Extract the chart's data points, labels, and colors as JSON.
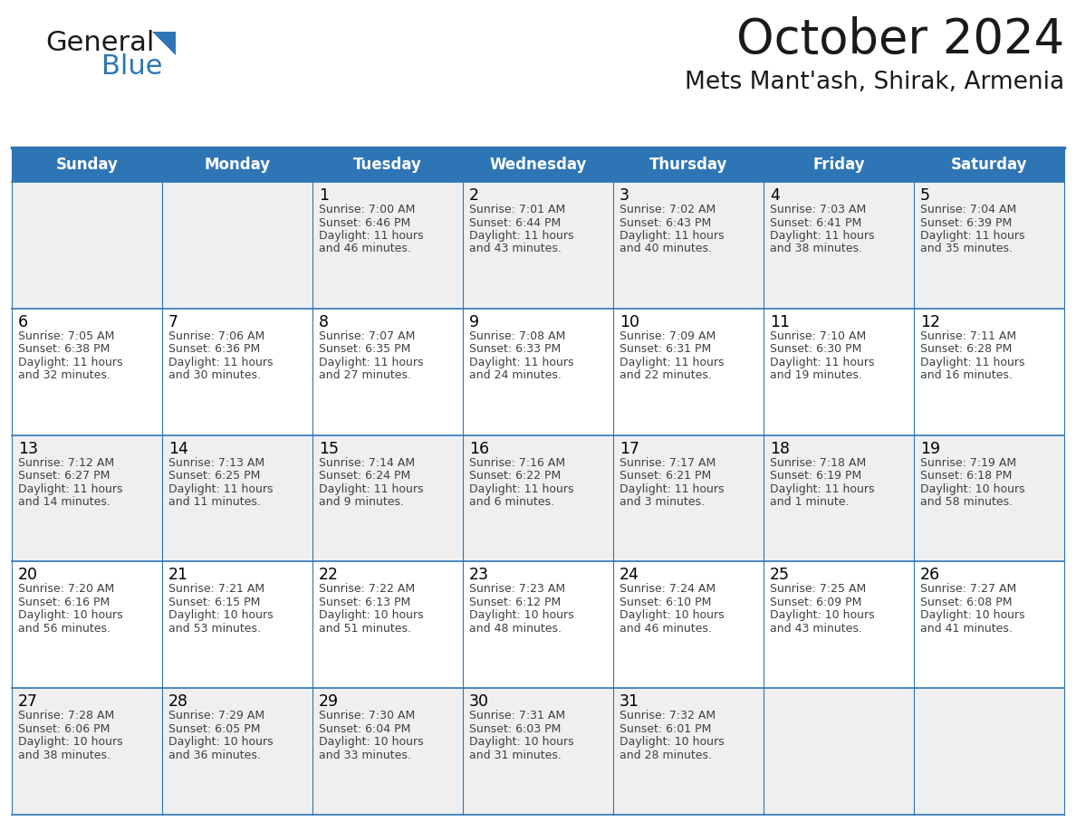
{
  "title": "October 2024",
  "subtitle": "Mets Mant'ash, Shirak, Armenia",
  "header_bg": "#2E75B6",
  "header_text_color": "#FFFFFF",
  "cell_bg_light": "#EFEFEF",
  "cell_bg_white": "#FFFFFF",
  "day_number_color": "#000000",
  "cell_text_color": "#404040",
  "border_color": "#2E75B6",
  "thin_line_color": "#2E75B6",
  "days_of_week": [
    "Sunday",
    "Monday",
    "Tuesday",
    "Wednesday",
    "Thursday",
    "Friday",
    "Saturday"
  ],
  "weeks": [
    [
      {
        "day": "",
        "info": ""
      },
      {
        "day": "",
        "info": ""
      },
      {
        "day": "1",
        "info": "Sunrise: 7:00 AM\nSunset: 6:46 PM\nDaylight: 11 hours\nand 46 minutes."
      },
      {
        "day": "2",
        "info": "Sunrise: 7:01 AM\nSunset: 6:44 PM\nDaylight: 11 hours\nand 43 minutes."
      },
      {
        "day": "3",
        "info": "Sunrise: 7:02 AM\nSunset: 6:43 PM\nDaylight: 11 hours\nand 40 minutes."
      },
      {
        "day": "4",
        "info": "Sunrise: 7:03 AM\nSunset: 6:41 PM\nDaylight: 11 hours\nand 38 minutes."
      },
      {
        "day": "5",
        "info": "Sunrise: 7:04 AM\nSunset: 6:39 PM\nDaylight: 11 hours\nand 35 minutes."
      }
    ],
    [
      {
        "day": "6",
        "info": "Sunrise: 7:05 AM\nSunset: 6:38 PM\nDaylight: 11 hours\nand 32 minutes."
      },
      {
        "day": "7",
        "info": "Sunrise: 7:06 AM\nSunset: 6:36 PM\nDaylight: 11 hours\nand 30 minutes."
      },
      {
        "day": "8",
        "info": "Sunrise: 7:07 AM\nSunset: 6:35 PM\nDaylight: 11 hours\nand 27 minutes."
      },
      {
        "day": "9",
        "info": "Sunrise: 7:08 AM\nSunset: 6:33 PM\nDaylight: 11 hours\nand 24 minutes."
      },
      {
        "day": "10",
        "info": "Sunrise: 7:09 AM\nSunset: 6:31 PM\nDaylight: 11 hours\nand 22 minutes."
      },
      {
        "day": "11",
        "info": "Sunrise: 7:10 AM\nSunset: 6:30 PM\nDaylight: 11 hours\nand 19 minutes."
      },
      {
        "day": "12",
        "info": "Sunrise: 7:11 AM\nSunset: 6:28 PM\nDaylight: 11 hours\nand 16 minutes."
      }
    ],
    [
      {
        "day": "13",
        "info": "Sunrise: 7:12 AM\nSunset: 6:27 PM\nDaylight: 11 hours\nand 14 minutes."
      },
      {
        "day": "14",
        "info": "Sunrise: 7:13 AM\nSunset: 6:25 PM\nDaylight: 11 hours\nand 11 minutes."
      },
      {
        "day": "15",
        "info": "Sunrise: 7:14 AM\nSunset: 6:24 PM\nDaylight: 11 hours\nand 9 minutes."
      },
      {
        "day": "16",
        "info": "Sunrise: 7:16 AM\nSunset: 6:22 PM\nDaylight: 11 hours\nand 6 minutes."
      },
      {
        "day": "17",
        "info": "Sunrise: 7:17 AM\nSunset: 6:21 PM\nDaylight: 11 hours\nand 3 minutes."
      },
      {
        "day": "18",
        "info": "Sunrise: 7:18 AM\nSunset: 6:19 PM\nDaylight: 11 hours\nand 1 minute."
      },
      {
        "day": "19",
        "info": "Sunrise: 7:19 AM\nSunset: 6:18 PM\nDaylight: 10 hours\nand 58 minutes."
      }
    ],
    [
      {
        "day": "20",
        "info": "Sunrise: 7:20 AM\nSunset: 6:16 PM\nDaylight: 10 hours\nand 56 minutes."
      },
      {
        "day": "21",
        "info": "Sunrise: 7:21 AM\nSunset: 6:15 PM\nDaylight: 10 hours\nand 53 minutes."
      },
      {
        "day": "22",
        "info": "Sunrise: 7:22 AM\nSunset: 6:13 PM\nDaylight: 10 hours\nand 51 minutes."
      },
      {
        "day": "23",
        "info": "Sunrise: 7:23 AM\nSunset: 6:12 PM\nDaylight: 10 hours\nand 48 minutes."
      },
      {
        "day": "24",
        "info": "Sunrise: 7:24 AM\nSunset: 6:10 PM\nDaylight: 10 hours\nand 46 minutes."
      },
      {
        "day": "25",
        "info": "Sunrise: 7:25 AM\nSunset: 6:09 PM\nDaylight: 10 hours\nand 43 minutes."
      },
      {
        "day": "26",
        "info": "Sunrise: 7:27 AM\nSunset: 6:08 PM\nDaylight: 10 hours\nand 41 minutes."
      }
    ],
    [
      {
        "day": "27",
        "info": "Sunrise: 7:28 AM\nSunset: 6:06 PM\nDaylight: 10 hours\nand 38 minutes."
      },
      {
        "day": "28",
        "info": "Sunrise: 7:29 AM\nSunset: 6:05 PM\nDaylight: 10 hours\nand 36 minutes."
      },
      {
        "day": "29",
        "info": "Sunrise: 7:30 AM\nSunset: 6:04 PM\nDaylight: 10 hours\nand 33 minutes."
      },
      {
        "day": "30",
        "info": "Sunrise: 7:31 AM\nSunset: 6:03 PM\nDaylight: 10 hours\nand 31 minutes."
      },
      {
        "day": "31",
        "info": "Sunrise: 7:32 AM\nSunset: 6:01 PM\nDaylight: 10 hours\nand 28 minutes."
      },
      {
        "day": "",
        "info": ""
      },
      {
        "day": "",
        "info": ""
      }
    ]
  ],
  "logo_general_color": "#1a1a1a",
  "logo_blue_color": "#2E75B6",
  "fig_width": 11.88,
  "fig_height": 9.18,
  "dpi": 100
}
